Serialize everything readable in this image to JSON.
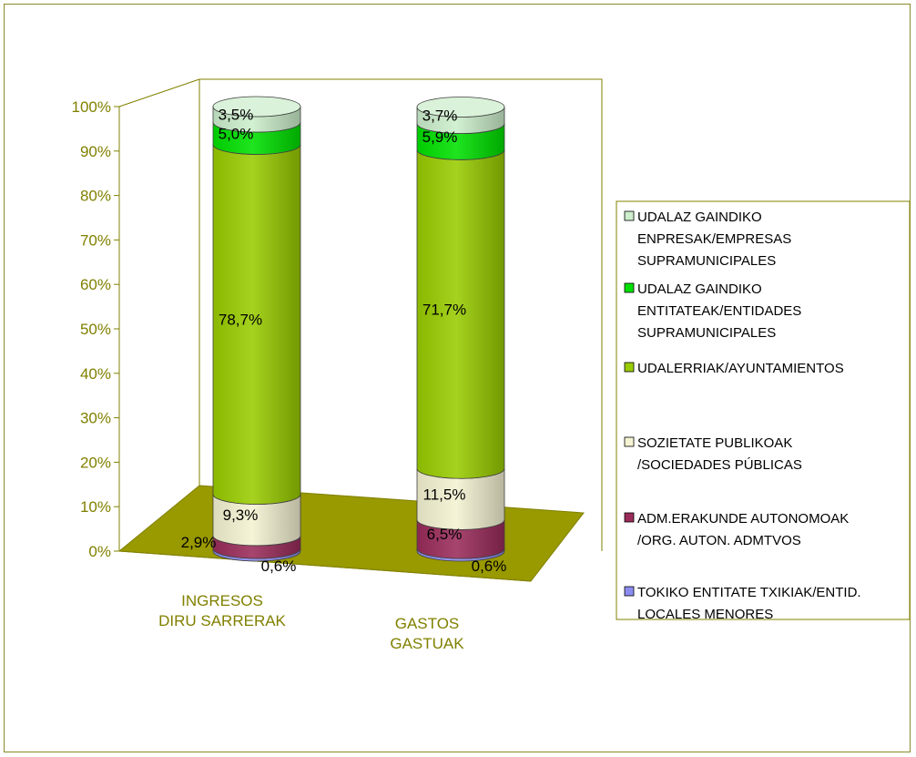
{
  "chart_data": {
    "type": "bar",
    "subtype": "stacked-100-percent-3d-cylinder",
    "categories": [
      [
        "INGRESOS",
        "DIRU SARRERAK"
      ],
      [
        "GASTOS",
        "GASTUAK"
      ]
    ],
    "y_ticks": [
      "0%",
      "10%",
      "20%",
      "30%",
      "40%",
      "50%",
      "60%",
      "70%",
      "80%",
      "90%",
      "100%"
    ],
    "ylim": [
      0,
      100
    ],
    "legend_position": "right",
    "series": [
      {
        "name": [
          "TOKIKO ENTITATE TXIKIAK/ENTID.",
          "LOCALES MENORES"
        ],
        "values": [
          0.6,
          0.6
        ],
        "labels": [
          "0,6%",
          "0,6%"
        ],
        "color": "#8c8cf0"
      },
      {
        "name": [
          "ADM.ERAKUNDE AUTONOMOAK",
          "/ORG. AUTON. ADMTVOS"
        ],
        "values": [
          2.9,
          6.5
        ],
        "labels": [
          "2,9%",
          "6,5%"
        ],
        "color": "#9a2c5a"
      },
      {
        "name": [
          "SOZIETATE PUBLIKOAK",
          "/SOCIEDADES PÚBLICAS"
        ],
        "values": [
          9.3,
          11.5
        ],
        "labels": [
          "9,3%",
          "11,5%"
        ],
        "color": "#f5f3d2"
      },
      {
        "name": [
          "UDALERRIAK/AYUNTAMIENTOS"
        ],
        "values": [
          78.7,
          71.7
        ],
        "labels": [
          "78,7%",
          "71,7%"
        ],
        "color": "#99cc00"
      },
      {
        "name": [
          "UDALAZ GAINDIKO",
          "ENTITATEAK/ENTIDADES",
          "SUPRAMUNICIPALES"
        ],
        "values": [
          5.0,
          5.9
        ],
        "labels": [
          "5,0%",
          "5,9%"
        ],
        "color": "#00e000"
      },
      {
        "name": [
          "UDALAZ GAINDIKO",
          "ENPRESAK/EMPRESAS",
          "SUPRAMUNICIPALES"
        ],
        "values": [
          3.5,
          3.7
        ],
        "labels": [
          "3,5%",
          "3,7%"
        ],
        "color": "#cceecc"
      }
    ],
    "legend_order": [
      5,
      4,
      3,
      2,
      1,
      0
    ],
    "colors": {
      "axis": "#808000",
      "floor": "#999900",
      "frame": "#8a8a2a"
    }
  }
}
